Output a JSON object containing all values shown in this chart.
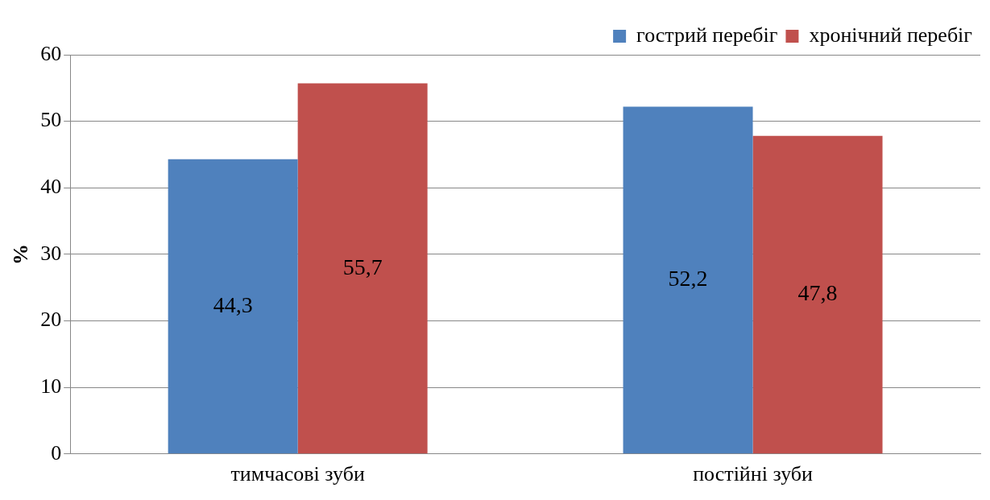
{
  "chart_data": {
    "type": "bar",
    "ylabel": "%",
    "categories": [
      "тимчасові зуби",
      "постійні зуби"
    ],
    "series": [
      {
        "name": "гострий перебіг",
        "color": "#4f81bd",
        "values": [
          44.3,
          52.2
        ],
        "value_labels": [
          "44,3",
          "52,2"
        ]
      },
      {
        "name": "хронічний перебіг",
        "color": "#c0504d",
        "values": [
          55.7,
          47.8
        ],
        "value_labels": [
          "55,7",
          "47,8"
        ]
      }
    ],
    "ylim": [
      0,
      60
    ],
    "yticks": [
      0,
      10,
      20,
      30,
      40,
      50,
      60
    ],
    "grid": "y",
    "legend": "top right"
  }
}
